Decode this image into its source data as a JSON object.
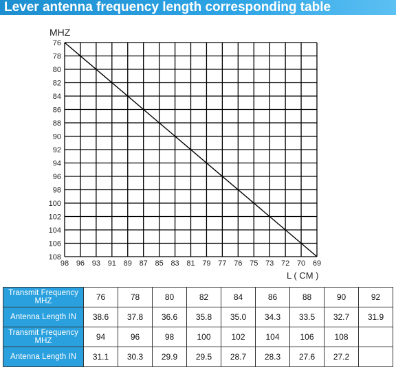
{
  "banner": {
    "title": "Lever antenna frequency length corresponding table"
  },
  "colors": {
    "banner": "#2a9ee0",
    "header_cell": "#2aa0de",
    "grid": "#000000"
  },
  "chart_data": {
    "type": "line",
    "ylabel": "MHZ",
    "xlabel": "L ( CM )",
    "y_ticks": [
      "76",
      "78",
      "80",
      "82",
      "84",
      "86",
      "88",
      "90",
      "92",
      "94",
      "96",
      "98",
      "100",
      "102",
      "104",
      "106",
      "108"
    ],
    "x_ticks": [
      "98",
      "96",
      "93",
      "91",
      "89",
      "87",
      "85",
      "83",
      "81",
      "79",
      "77",
      "76",
      "75",
      "73",
      "72",
      "70",
      "69"
    ],
    "ylim": [
      76,
      108
    ],
    "y_inverted": true,
    "grid": true,
    "series": [
      {
        "x": [
          98,
          69
        ],
        "y": [
          76,
          108
        ]
      }
    ]
  },
  "table": {
    "rows": [
      {
        "label": "Transmit Frequency MHZ",
        "values": [
          "76",
          "78",
          "80",
          "82",
          "84",
          "86",
          "88",
          "90",
          "92"
        ]
      },
      {
        "label": "Antenna Length IN",
        "values": [
          "38.6",
          "37.8",
          "36.6",
          "35.8",
          "35.0",
          "34.3",
          "33.5",
          "32.7",
          "31.9"
        ]
      },
      {
        "label": "Transmit Frequency MHZ",
        "values": [
          "94",
          "96",
          "98",
          "100",
          "102",
          "104",
          "106",
          "108",
          ""
        ]
      },
      {
        "label": "Antenna Length IN",
        "values": [
          "31.1",
          "30.3",
          "29.9",
          "29.5",
          "28.7",
          "28.3",
          "27.6",
          "27.2",
          ""
        ]
      }
    ]
  }
}
